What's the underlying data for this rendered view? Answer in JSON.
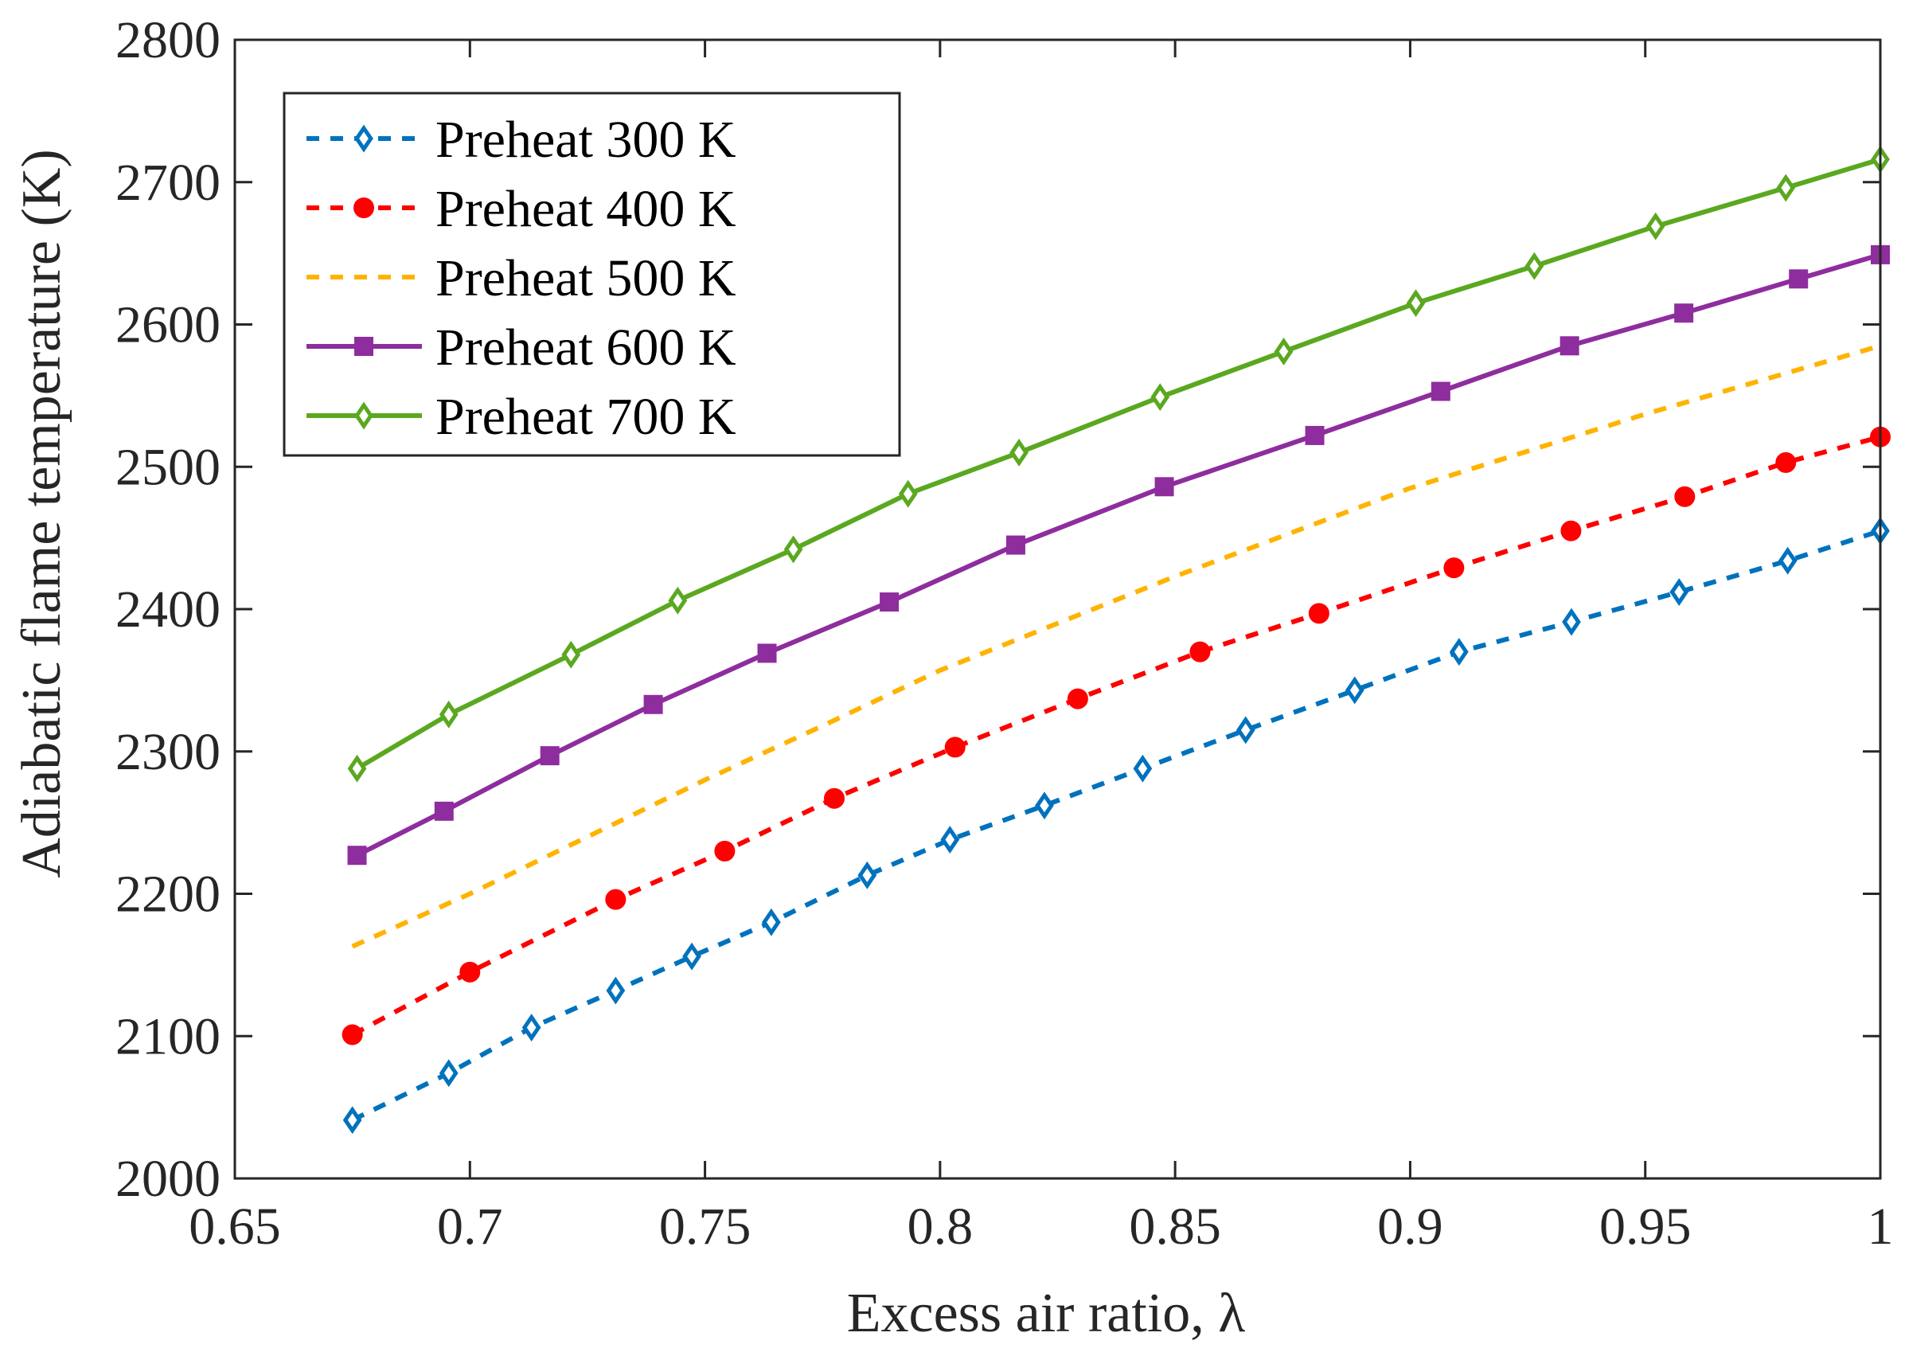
{
  "chart_data": {
    "type": "line",
    "title": "",
    "xlabel": "Excess air ratio, λ",
    "ylabel": "Adiabatic flame temperature (K)",
    "xlim": [
      0.65,
      1.0
    ],
    "ylim": [
      2000,
      2800
    ],
    "xticks": [
      0.65,
      0.7,
      0.75,
      0.8,
      0.85,
      0.9,
      0.95,
      1.0
    ],
    "xtick_labels": [
      "0.65",
      "0.7",
      "0.75",
      "0.8",
      "0.85",
      "0.9",
      "0.95",
      "1"
    ],
    "yticks": [
      2000,
      2100,
      2200,
      2300,
      2400,
      2500,
      2600,
      2700,
      2800
    ],
    "ytick_labels": [
      "2000",
      "2100",
      "2200",
      "2300",
      "2400",
      "2500",
      "2600",
      "2700",
      "2800"
    ],
    "grid": false,
    "legend_position": "top-left",
    "series": [
      {
        "name": "Preheat 300 K",
        "color": "#0072BD",
        "line": "dashed",
        "marker": "diamond",
        "x": [
          0.675,
          0.6955,
          0.7131,
          0.731,
          0.7472,
          0.7641,
          0.7845,
          0.8021,
          0.8222,
          0.8431,
          0.865,
          0.8882,
          0.9104,
          0.9343,
          0.9572,
          0.9803,
          1.0
        ],
        "y": [
          2041,
          2074,
          2106,
          2132,
          2156,
          2180,
          2213,
          2238,
          2262,
          2288,
          2315,
          2343,
          2370,
          2391,
          2412,
          2434,
          2455
        ]
      },
      {
        "name": "Preheat 400 K",
        "color": "#FF0000",
        "line": "dashed",
        "marker": "circle",
        "x": [
          0.675,
          0.7,
          0.731,
          0.7542,
          0.7775,
          0.8032,
          0.8293,
          0.8553,
          0.8806,
          0.9093,
          0.9342,
          0.9584,
          0.9799,
          1.0
        ],
        "y": [
          2101,
          2145,
          2196,
          2230,
          2267,
          2303,
          2337,
          2370,
          2397,
          2429,
          2455,
          2479,
          2503,
          2521
        ]
      },
      {
        "name": "Preheat 500 K",
        "color": "#FFB300",
        "line": "dashed",
        "marker": "none",
        "x": [
          0.675,
          0.7,
          0.725,
          0.75,
          0.775,
          0.8,
          0.825,
          0.85,
          0.875,
          0.9,
          0.925,
          0.95,
          0.975,
          1.0
        ],
        "y": [
          2163,
          2200,
          2240,
          2280,
          2318,
          2357,
          2390,
          2423,
          2454,
          2485,
          2511,
          2537,
          2561,
          2585
        ]
      },
      {
        "name": "Preheat 600 K",
        "color": "#8E2D9E",
        "line": "solid",
        "marker": "square",
        "x": [
          0.676,
          0.6945,
          0.717,
          0.739,
          0.7632,
          0.7892,
          0.8161,
          0.8477,
          0.8797,
          0.9065,
          0.9339,
          0.9582,
          0.9826,
          1.0
        ],
        "y": [
          2227,
          2258,
          2297,
          2333,
          2369,
          2405,
          2445,
          2486,
          2522,
          2553,
          2585,
          2608,
          2632,
          2649
        ]
      },
      {
        "name": "Preheat 700 K",
        "color": "#5AA820",
        "line": "solid",
        "marker": "diamond",
        "x": [
          0.676,
          0.6955,
          0.7215,
          0.7442,
          0.7688,
          0.7932,
          0.8168,
          0.8468,
          0.8731,
          0.9012,
          0.9264,
          0.9522,
          0.9799,
          1.0
        ],
        "y": [
          2288,
          2326,
          2368,
          2406,
          2442,
          2481,
          2510,
          2549,
          2581,
          2615,
          2641,
          2669,
          2696,
          2716
        ]
      }
    ]
  }
}
